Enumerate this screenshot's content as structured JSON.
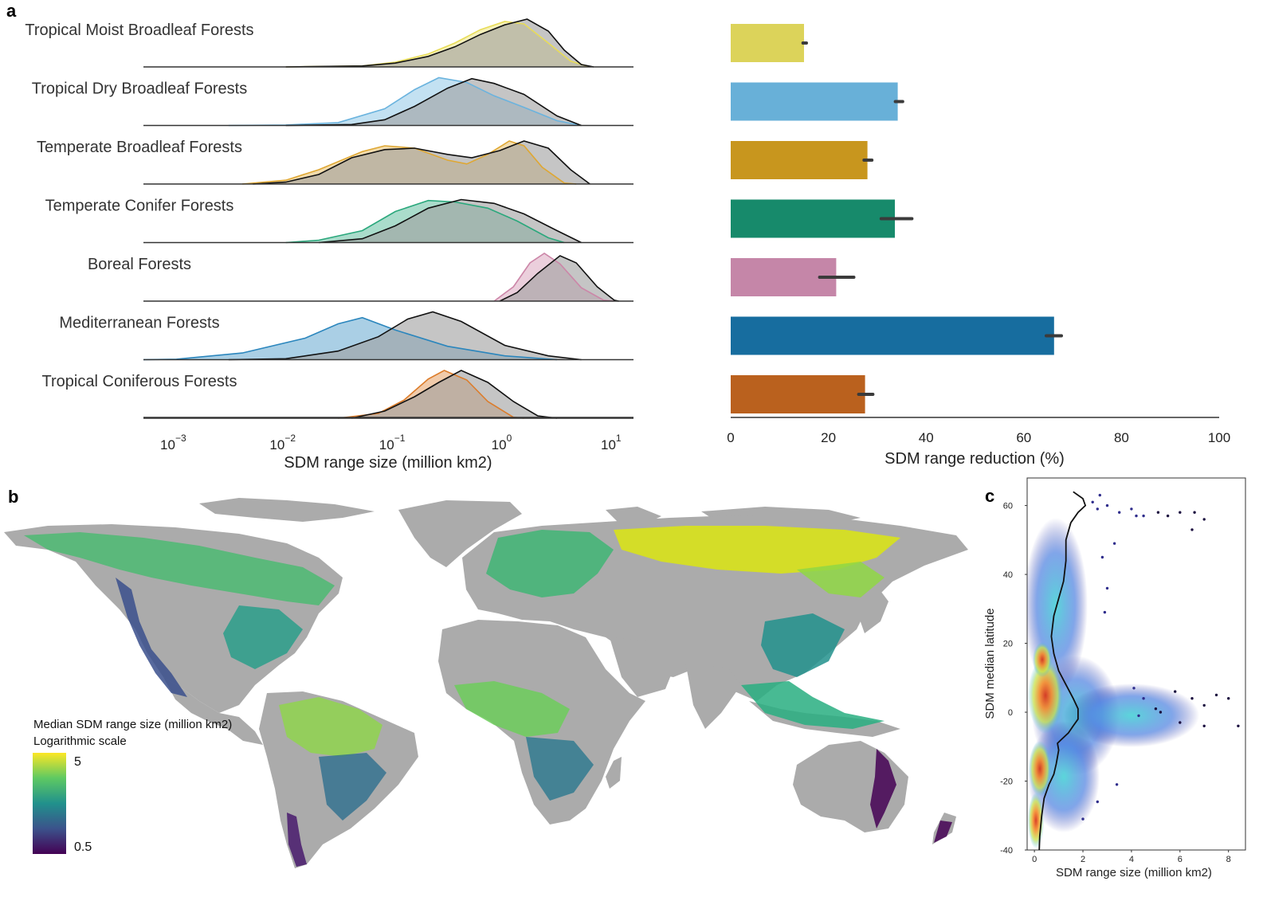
{
  "panels": {
    "a": "a",
    "b": "b",
    "c": "c"
  },
  "colors": {
    "comparison_fill": "#9e9e9e",
    "land": "#ababab",
    "axis": "#333333"
  },
  "chart_data": [
    {
      "id": "a-left",
      "type": "area",
      "xlabel": "SDM range size (million km2)",
      "xscale": "log",
      "xlim": [
        0.0005,
        15
      ],
      "x_ticks": [
        {
          "base": "10",
          "exp": "−3",
          "value": 0.001
        },
        {
          "base": "10",
          "exp": "−2",
          "value": 0.01
        },
        {
          "base": "10",
          "exp": "−1",
          "value": 0.1
        },
        {
          "base": "10",
          "exp": "0",
          "value": 1
        },
        {
          "base": "10",
          "exp": "1",
          "value": 10
        }
      ],
      "grid": false,
      "series": [
        {
          "name": "Tropical Moist Broadleaf Forests",
          "color": "#e8dc56",
          "colored": [
            [
              0.01,
              0
            ],
            [
              0.05,
              0.02
            ],
            [
              0.1,
              0.1
            ],
            [
              0.2,
              0.27
            ],
            [
              0.35,
              0.5
            ],
            [
              0.6,
              0.78
            ],
            [
              1.0,
              0.95
            ],
            [
              1.5,
              0.9
            ],
            [
              2.5,
              0.5
            ],
            [
              4,
              0.12
            ],
            [
              6,
              0
            ]
          ],
          "gray": [
            [
              0.01,
              0
            ],
            [
              0.05,
              0.02
            ],
            [
              0.1,
              0.08
            ],
            [
              0.2,
              0.22
            ],
            [
              0.35,
              0.42
            ],
            [
              0.6,
              0.68
            ],
            [
              1.0,
              0.88
            ],
            [
              1.6,
              1.0
            ],
            [
              2.5,
              0.75
            ],
            [
              3.5,
              0.35
            ],
            [
              5,
              0.05
            ],
            [
              6.5,
              0
            ]
          ]
        },
        {
          "name": "Tropical Dry Broadleaf Forests",
          "color": "#6ab3de",
          "colored": [
            [
              0.003,
              0
            ],
            [
              0.01,
              0.01
            ],
            [
              0.03,
              0.06
            ],
            [
              0.08,
              0.35
            ],
            [
              0.15,
              0.75
            ],
            [
              0.25,
              1.0
            ],
            [
              0.45,
              0.9
            ],
            [
              0.8,
              0.62
            ],
            [
              1.5,
              0.38
            ],
            [
              3,
              0.1
            ],
            [
              5,
              0
            ]
          ],
          "gray": [
            [
              0.01,
              0
            ],
            [
              0.04,
              0.02
            ],
            [
              0.08,
              0.12
            ],
            [
              0.15,
              0.4
            ],
            [
              0.3,
              0.78
            ],
            [
              0.5,
              0.98
            ],
            [
              0.8,
              0.88
            ],
            [
              1.5,
              0.65
            ],
            [
              3,
              0.2
            ],
            [
              5,
              0
            ]
          ]
        },
        {
          "name": "Temperate Broadleaf Forests",
          "color": "#dfa732",
          "colored": [
            [
              0.004,
              0
            ],
            [
              0.01,
              0.08
            ],
            [
              0.02,
              0.3
            ],
            [
              0.05,
              0.68
            ],
            [
              0.08,
              0.8
            ],
            [
              0.15,
              0.75
            ],
            [
              0.3,
              0.5
            ],
            [
              0.45,
              0.42
            ],
            [
              0.7,
              0.62
            ],
            [
              1.1,
              0.9
            ],
            [
              1.5,
              0.8
            ],
            [
              2.2,
              0.35
            ],
            [
              3.5,
              0.02
            ],
            [
              4.5,
              0
            ]
          ],
          "gray": [
            [
              0.005,
              0
            ],
            [
              0.01,
              0.04
            ],
            [
              0.02,
              0.2
            ],
            [
              0.04,
              0.55
            ],
            [
              0.08,
              0.72
            ],
            [
              0.15,
              0.75
            ],
            [
              0.3,
              0.62
            ],
            [
              0.5,
              0.55
            ],
            [
              0.9,
              0.7
            ],
            [
              1.5,
              0.9
            ],
            [
              2.5,
              0.75
            ],
            [
              4,
              0.3
            ],
            [
              6,
              0
            ]
          ]
        },
        {
          "name": "Temperate Conifer Forests",
          "color": "#2aa87c",
          "colored": [
            [
              0.01,
              0
            ],
            [
              0.02,
              0.05
            ],
            [
              0.05,
              0.25
            ],
            [
              0.1,
              0.65
            ],
            [
              0.2,
              0.88
            ],
            [
              0.35,
              0.85
            ],
            [
              0.7,
              0.72
            ],
            [
              1.3,
              0.45
            ],
            [
              2.5,
              0.1
            ],
            [
              3.5,
              0
            ]
          ],
          "gray": [
            [
              0.02,
              0
            ],
            [
              0.05,
              0.08
            ],
            [
              0.1,
              0.35
            ],
            [
              0.2,
              0.72
            ],
            [
              0.4,
              0.9
            ],
            [
              0.8,
              0.82
            ],
            [
              1.5,
              0.6
            ],
            [
              3,
              0.25
            ],
            [
              5,
              0
            ]
          ]
        },
        {
          "name": "Boreal Forests",
          "color": "#cc86a8",
          "colored": [
            [
              0.8,
              0
            ],
            [
              1.2,
              0.3
            ],
            [
              1.7,
              0.8
            ],
            [
              2.3,
              1.0
            ],
            [
              3.2,
              0.78
            ],
            [
              5,
              0.28
            ],
            [
              8,
              0.02
            ],
            [
              10,
              0
            ]
          ],
          "gray": [
            [
              0.9,
              0
            ],
            [
              1.3,
              0.18
            ],
            [
              2,
              0.58
            ],
            [
              3.2,
              0.95
            ],
            [
              4.5,
              0.8
            ],
            [
              7,
              0.3
            ],
            [
              10,
              0.02
            ],
            [
              11,
              0
            ]
          ]
        },
        {
          "name": "Mediterranean Forests",
          "color": "#2b86bd",
          "colored": [
            [
              0.0005,
              0
            ],
            [
              0.001,
              0.01
            ],
            [
              0.004,
              0.14
            ],
            [
              0.015,
              0.45
            ],
            [
              0.03,
              0.75
            ],
            [
              0.05,
              0.88
            ],
            [
              0.1,
              0.62
            ],
            [
              0.3,
              0.28
            ],
            [
              1,
              0.08
            ],
            [
              3,
              0
            ]
          ],
          "gray": [
            [
              0.003,
              0
            ],
            [
              0.01,
              0.02
            ],
            [
              0.03,
              0.18
            ],
            [
              0.07,
              0.48
            ],
            [
              0.13,
              0.85
            ],
            [
              0.22,
              1.0
            ],
            [
              0.4,
              0.8
            ],
            [
              1,
              0.3
            ],
            [
              2.5,
              0.08
            ],
            [
              5,
              0
            ]
          ]
        },
        {
          "name": "Tropical Coniferous Forests",
          "color": "#dc7c2a",
          "colored": [
            [
              0.03,
              0
            ],
            [
              0.07,
              0.1
            ],
            [
              0.12,
              0.38
            ],
            [
              0.2,
              0.82
            ],
            [
              0.28,
              1.0
            ],
            [
              0.45,
              0.8
            ],
            [
              0.7,
              0.35
            ],
            [
              1.2,
              0.02
            ],
            [
              1.5,
              0
            ]
          ],
          "gray": [
            [
              0.04,
              0
            ],
            [
              0.08,
              0.15
            ],
            [
              0.15,
              0.45
            ],
            [
              0.25,
              0.75
            ],
            [
              0.4,
              1.0
            ],
            [
              0.7,
              0.75
            ],
            [
              1.2,
              0.35
            ],
            [
              2,
              0.05
            ],
            [
              3,
              0
            ]
          ]
        }
      ]
    },
    {
      "id": "a-right",
      "type": "bar",
      "orientation": "horizontal",
      "xlabel": "SDM range reduction (%)",
      "xlim": [
        0,
        100
      ],
      "x_ticks": [
        "0",
        "20",
        "40",
        "60",
        "80",
        "100"
      ],
      "grid": false,
      "categories": [
        "Tropical Moist Broadleaf Forests",
        "Tropical Dry Broadleaf Forests",
        "Temperate Broadleaf Forests",
        "Temperate Conifer Forests",
        "Boreal Forests",
        "Mediterranean Forests",
        "Tropical Coniferous Forests"
      ],
      "values": [
        15,
        34.2,
        28,
        33.6,
        21.6,
        66.2,
        27.5
      ],
      "errors": [
        [
          14.8,
          15.5
        ],
        [
          33.7,
          35.2
        ],
        [
          27.3,
          28.9
        ],
        [
          30.8,
          37.1
        ],
        [
          18.2,
          25.2
        ],
        [
          64.6,
          67.7
        ],
        [
          26.2,
          29.1
        ]
      ],
      "colors": [
        "#dcd35a",
        "#68b0d8",
        "#c8961e",
        "#178a6b",
        "#c586a8",
        "#176d9f",
        "#ba611e"
      ]
    },
    {
      "id": "c",
      "type": "scatter",
      "xlabel": "SDM range size (million km2)",
      "ylabel": "SDM median latitude",
      "xlim": [
        -0.3,
        8.7
      ],
      "ylim": [
        -40,
        68
      ],
      "x_ticks": [
        "0",
        "2",
        "4",
        "6",
        "8"
      ],
      "y_ticks": [
        "-40",
        "-20",
        "0",
        "20",
        "40",
        "60"
      ],
      "grid": false,
      "outliers": [
        [
          2.4,
          61
        ],
        [
          2.6,
          59
        ],
        [
          3.0,
          60
        ],
        [
          3.5,
          58
        ],
        [
          4.0,
          59
        ],
        [
          4.5,
          57
        ],
        [
          5.1,
          58
        ],
        [
          5.5,
          57
        ],
        [
          6.0,
          58
        ],
        [
          6.6,
          58
        ],
        [
          6.5,
          53
        ],
        [
          7.0,
          56
        ],
        [
          2.7,
          63
        ],
        [
          4.2,
          57
        ],
        [
          3.3,
          49
        ],
        [
          2.8,
          45
        ],
        [
          3.0,
          36
        ],
        [
          2.9,
          29
        ],
        [
          4.1,
          7
        ],
        [
          4.5,
          4
        ],
        [
          5.0,
          1
        ],
        [
          5.8,
          6
        ],
        [
          6.5,
          4
        ],
        [
          7.0,
          2
        ],
        [
          7.5,
          5
        ],
        [
          8.0,
          4
        ],
        [
          8.4,
          -4
        ],
        [
          6.0,
          -3
        ],
        [
          7.0,
          -4
        ],
        [
          5.2,
          0
        ],
        [
          4.3,
          -1
        ],
        [
          3.4,
          -21
        ],
        [
          2.6,
          -26
        ],
        [
          2.0,
          -31
        ]
      ],
      "trend": [
        [
          0.2,
          -40
        ],
        [
          0.22,
          -36
        ],
        [
          0.3,
          -30
        ],
        [
          0.4,
          -25
        ],
        [
          0.6,
          -21
        ],
        [
          0.8,
          -18
        ],
        [
          0.9,
          -15
        ],
        [
          1.0,
          -11
        ],
        [
          0.95,
          -9
        ],
        [
          1.1,
          -8
        ],
        [
          1.4,
          -6
        ],
        [
          1.6,
          -4
        ],
        [
          1.8,
          -2
        ],
        [
          1.8,
          1
        ],
        [
          1.6,
          4
        ],
        [
          1.3,
          8
        ],
        [
          1.0,
          12
        ],
        [
          0.8,
          17
        ],
        [
          0.7,
          22
        ],
        [
          0.8,
          28
        ],
        [
          1.0,
          33
        ],
        [
          1.2,
          38
        ],
        [
          1.3,
          44
        ],
        [
          1.3,
          50
        ],
        [
          1.5,
          55
        ],
        [
          1.8,
          58
        ],
        [
          2.1,
          60
        ],
        [
          2.0,
          62
        ],
        [
          1.8,
          63
        ],
        [
          1.6,
          64
        ]
      ]
    }
  ],
  "legend": {
    "title_line1": "Median SDM range size (million km2)",
    "title_line2": "Logarithmic scale",
    "max_label": "5",
    "min_label": "0.5",
    "colors": [
      "#fde725",
      "#5ec962",
      "#21918c",
      "#3b528b",
      "#440154"
    ]
  }
}
